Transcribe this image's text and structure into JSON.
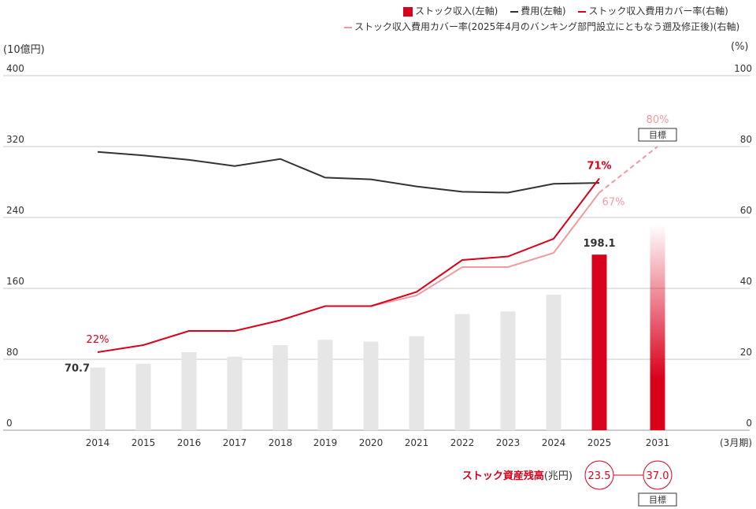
{
  "chart_data": {
    "type": "bar",
    "categories": [
      "2014",
      "2015",
      "2016",
      "2017",
      "2018",
      "2019",
      "2020",
      "2021",
      "2022",
      "2023",
      "2024",
      "2025",
      "2031"
    ],
    "left_axis": {
      "label": "(10億円)",
      "ticks": [
        0,
        80,
        160,
        240,
        320,
        400
      ],
      "range": [
        0,
        400
      ]
    },
    "right_axis": {
      "label": "(%)",
      "ticks": [
        0,
        20,
        40,
        60,
        80,
        100
      ],
      "range": [
        0,
        100
      ]
    },
    "x_axis_suffix": "(3月期)",
    "series": [
      {
        "name": "ストック収入(左軸)",
        "kind": "bar",
        "axis": "left",
        "color": "#d9001b",
        "values": [
          70.7,
          75,
          88,
          83,
          96,
          102,
          100,
          106,
          131,
          134,
          153,
          198.1,
          232
        ]
      },
      {
        "name": "費用(左軸)",
        "kind": "line",
        "axis": "left",
        "color": "#333333",
        "values": [
          314,
          310,
          305,
          298,
          306,
          285,
          283,
          275,
          269,
          268,
          278,
          279,
          null
        ]
      },
      {
        "name": "ストック収入費用カバー率(右軸)",
        "kind": "line",
        "axis": "right",
        "color": "#d9001b",
        "values": [
          22,
          24,
          28,
          28,
          31,
          35,
          35,
          39,
          48,
          49,
          54,
          71,
          null
        ]
      },
      {
        "name": "ストック収入費用カバー率(2025年4月のバンキング部門設立にともなう遡及修正後)(右軸)",
        "kind": "line",
        "axis": "right",
        "color": "#f09aa0",
        "values": [
          null,
          null,
          null,
          null,
          null,
          null,
          35,
          38,
          46,
          46,
          50,
          67,
          80
        ]
      }
    ],
    "data_labels": {
      "first_bar": "70.7",
      "bar_2025": "198.1",
      "cover_start": "22%",
      "cover_2025": "71%",
      "cover_adjusted_2025": "67%",
      "target_rate": "80%"
    },
    "target_label": "目標",
    "stock_assets": {
      "label": "ストック資産残高",
      "unit": "(兆円)",
      "value_2025": "23.5",
      "value_2031": "37.0",
      "target_label": "目標"
    }
  }
}
